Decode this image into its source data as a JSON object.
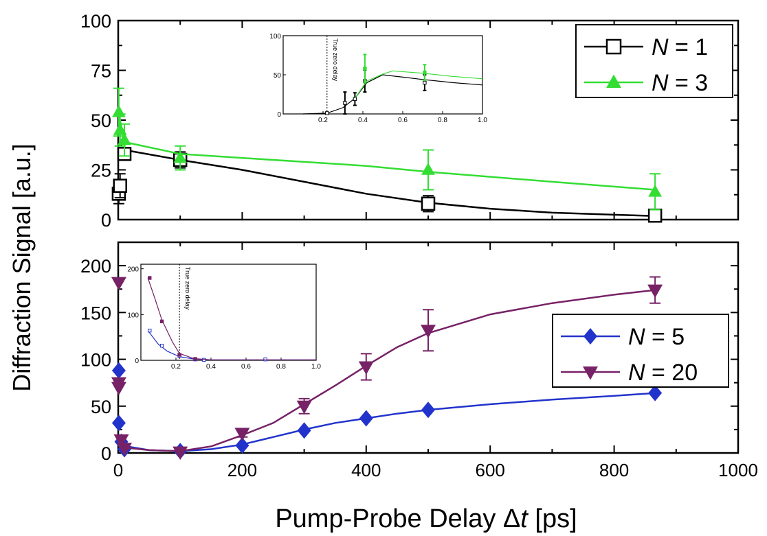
{
  "chart_data": [
    {
      "type": "line",
      "panel": "top",
      "xlim": [
        0,
        1000
      ],
      "ylim": [
        0,
        100
      ],
      "yticks": [
        "0",
        "25",
        "50",
        "75",
        "100"
      ],
      "legend_position": "top-right",
      "series": [
        {
          "name_italic": "N",
          "name_rest": " = 1",
          "color": "#000000",
          "marker": "open-square",
          "points": [
            {
              "x": 1,
              "y": 13,
              "err": 5
            },
            {
              "x": 3,
              "y": 17,
              "err": 6
            },
            {
              "x": 10,
              "y": 33,
              "err": 3
            },
            {
              "x": 100,
              "y": 30,
              "err": 4
            },
            {
              "x": 500,
              "y": 8,
              "err": 4
            },
            {
              "x": 866,
              "y": 2,
              "err": 2
            }
          ],
          "fit": [
            [
              10,
              35
            ],
            [
              100,
              30
            ],
            [
              200,
              25
            ],
            [
              300,
              19
            ],
            [
              400,
              13
            ],
            [
              500,
              8.5
            ],
            [
              600,
              5.5
            ],
            [
              700,
              3.5
            ],
            [
              866,
              1.8
            ]
          ]
        },
        {
          "name_italic": "N",
          "name_rest": " = 3",
          "color": "#33dd33",
          "marker": "filled-triangle-up",
          "points": [
            {
              "x": 1,
              "y": 54,
              "err": 12
            },
            {
              "x": 3,
              "y": 45,
              "err": 8
            },
            {
              "x": 10,
              "y": 40,
              "err": 8
            },
            {
              "x": 100,
              "y": 31,
              "err": 6
            },
            {
              "x": 500,
              "y": 25,
              "err": 10
            },
            {
              "x": 866,
              "y": 14,
              "err": 9
            }
          ],
          "fit": [
            [
              3,
              50
            ],
            [
              10,
              39
            ],
            [
              100,
              33
            ],
            [
              200,
              31
            ],
            [
              300,
              29
            ],
            [
              400,
              27
            ],
            [
              500,
              24
            ],
            [
              600,
              21.5
            ],
            [
              700,
              19
            ],
            [
              866,
              15
            ]
          ]
        }
      ],
      "inset": {
        "xlim": [
          0,
          1.0
        ],
        "ylim": [
          0,
          100
        ],
        "xticks": [
          "0.2",
          "0.4",
          "0.6",
          "0.8",
          "1.0"
        ],
        "yticks": [
          "0",
          "50",
          "100"
        ],
        "vline_x": 0.22,
        "vline_label": "True zero delay",
        "series": [
          {
            "color": "#000000",
            "points": [
              {
                "x": 0.22,
                "y": 1
              },
              {
                "x": 0.31,
                "y": 14,
                "err": 14
              },
              {
                "x": 0.36,
                "y": 19,
                "err": 8
              },
              {
                "x": 0.41,
                "y": 42,
                "err": 14
              },
              {
                "x": 0.71,
                "y": 40,
                "err": 10
              }
            ],
            "fit": [
              [
                0.1,
                0
              ],
              [
                0.22,
                1
              ],
              [
                0.3,
                8
              ],
              [
                0.36,
                20
              ],
              [
                0.42,
                40
              ],
              [
                0.5,
                50
              ],
              [
                0.6,
                47
              ],
              [
                0.7,
                44
              ],
              [
                0.85,
                40
              ],
              [
                1.0,
                37
              ]
            ]
          },
          {
            "color": "#33dd33",
            "points": [
              {
                "x": 0.41,
                "y": 58,
                "err": 18
              },
              {
                "x": 0.71,
                "y": 53,
                "err": 10
              }
            ],
            "fit": [
              [
                0.36,
                20
              ],
              [
                0.42,
                42
              ],
              [
                0.5,
                51
              ],
              [
                0.55,
                55
              ],
              [
                0.7,
                52
              ],
              [
                0.85,
                48
              ],
              [
                1.0,
                45
              ]
            ]
          }
        ]
      }
    },
    {
      "type": "line",
      "panel": "bottom",
      "xlim": [
        0,
        1000
      ],
      "ylim": [
        0,
        225
      ],
      "yticks": [
        "0",
        "50",
        "100",
        "150",
        "200"
      ],
      "xticks": [
        "0",
        "200",
        "400",
        "600",
        "800",
        "1000"
      ],
      "xlabel_main": "Pump-Probe Delay ",
      "xlabel_italic": "t",
      "xlabel_delta": "Δ",
      "xlabel_unit": " [ps]",
      "ylabel": "Diffraction Signal [a.u.]",
      "legend_position": "right",
      "series": [
        {
          "name_italic": "N",
          "name_rest": " = 5",
          "color": "#2233cc",
          "marker": "filled-diamond",
          "points": [
            {
              "x": 1,
              "y": 88
            },
            {
              "x": 1,
              "y": 32
            },
            {
              "x": 5,
              "y": 12
            },
            {
              "x": 10,
              "y": 4
            },
            {
              "x": 100,
              "y": 2
            },
            {
              "x": 200,
              "y": 8
            },
            {
              "x": 300,
              "y": 24
            },
            {
              "x": 400,
              "y": 37
            },
            {
              "x": 500,
              "y": 46
            },
            {
              "x": 866,
              "y": 64
            }
          ],
          "fit": [
            [
              5,
              8
            ],
            [
              50,
              3
            ],
            [
              100,
              2
            ],
            [
              150,
              4
            ],
            [
              200,
              9
            ],
            [
              250,
              17
            ],
            [
              300,
              25
            ],
            [
              350,
              32
            ],
            [
              400,
              37
            ],
            [
              450,
              42
            ],
            [
              500,
              46
            ],
            [
              600,
              52
            ],
            [
              700,
              57
            ],
            [
              800,
              61
            ],
            [
              866,
              64
            ]
          ]
        },
        {
          "name_italic": "N",
          "name_rest": " = 20",
          "color": "#772266",
          "marker": "filled-triangle-down",
          "points": [
            {
              "x": 1,
              "y": 182
            },
            {
              "x": 1,
              "y": 75
            },
            {
              "x": 1,
              "y": 70
            },
            {
              "x": 5,
              "y": 14
            },
            {
              "x": 10,
              "y": 5
            },
            {
              "x": 100,
              "y": 1
            },
            {
              "x": 200,
              "y": 21,
              "err": 4
            },
            {
              "x": 300,
              "y": 50,
              "err": 8
            },
            {
              "x": 400,
              "y": 92,
              "err": 14
            },
            {
              "x": 500,
              "y": 131,
              "err": 22
            },
            {
              "x": 866,
              "y": 174,
              "err": 14
            }
          ],
          "fit": [
            [
              5,
              6
            ],
            [
              50,
              3
            ],
            [
              100,
              2
            ],
            [
              150,
              7
            ],
            [
              200,
              19
            ],
            [
              250,
              32
            ],
            [
              300,
              52
            ],
            [
              350,
              72
            ],
            [
              400,
              93
            ],
            [
              450,
              113
            ],
            [
              500,
              128
            ],
            [
              600,
              148
            ],
            [
              700,
              160
            ],
            [
              800,
              169
            ],
            [
              866,
              174
            ]
          ]
        }
      ],
      "inset": {
        "xlim": [
          0,
          1.0
        ],
        "ylim": [
          0,
          210
        ],
        "xticks": [
          "0.2",
          "0.4",
          "0.6",
          "0.8",
          "1.0"
        ],
        "yticks": [
          "0",
          "100",
          "200"
        ],
        "vline_x": 0.22,
        "vline_label": "True zero delay",
        "series": [
          {
            "color": "#2233cc",
            "points": [
              {
                "x": 0.05,
                "y": 65
              },
              {
                "x": 0.12,
                "y": 32
              },
              {
                "x": 0.22,
                "y": 10
              },
              {
                "x": 0.31,
                "y": 2
              },
              {
                "x": 0.36,
                "y": 1
              },
              {
                "x": 0.71,
                "y": 2
              }
            ],
            "fit": [
              [
                0.04,
                65
              ],
              [
                0.1,
                35
              ],
              [
                0.15,
                20
              ],
              [
                0.22,
                8
              ],
              [
                0.3,
                3
              ],
              [
                0.4,
                1
              ],
              [
                1.0,
                1
              ]
            ]
          },
          {
            "color": "#772266",
            "points": [
              {
                "x": 0.05,
                "y": 180
              },
              {
                "x": 0.12,
                "y": 85
              },
              {
                "x": 0.22,
                "y": 12
              },
              {
                "x": 0.31,
                "y": 3
              }
            ],
            "fit": [
              [
                0.04,
                180
              ],
              [
                0.08,
                135
              ],
              [
                0.12,
                88
              ],
              [
                0.18,
                40
              ],
              [
                0.22,
                15
              ],
              [
                0.3,
                4
              ],
              [
                0.4,
                1
              ],
              [
                1.0,
                1
              ]
            ]
          }
        ]
      }
    }
  ]
}
